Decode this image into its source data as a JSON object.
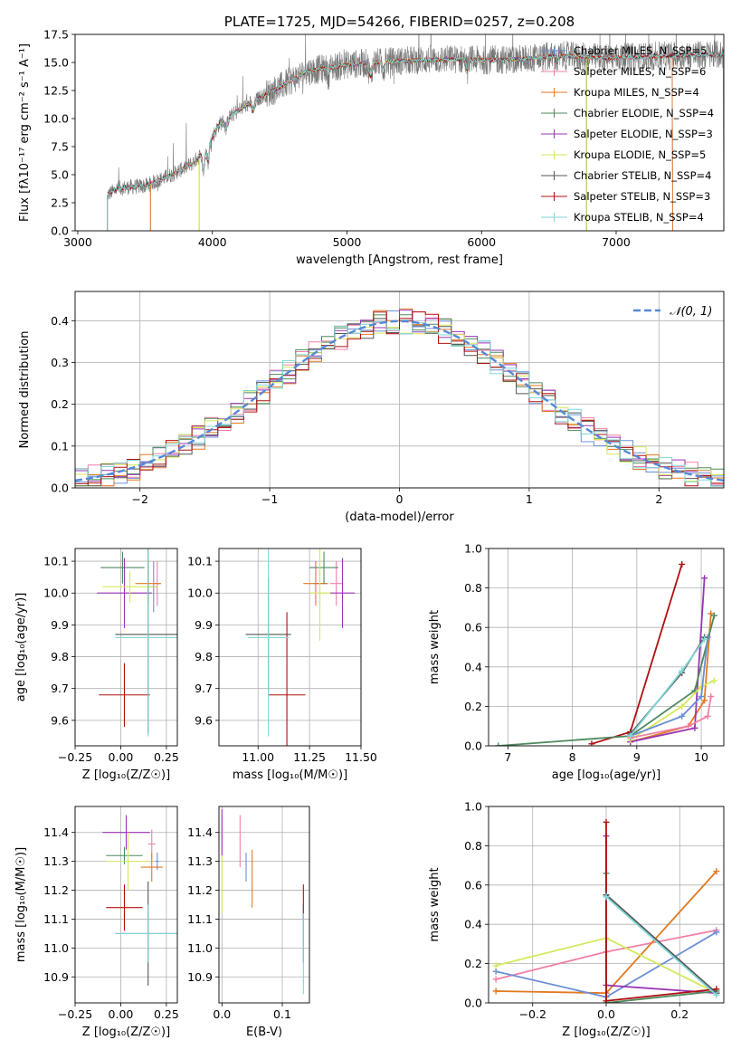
{
  "colors": {
    "chabrier_miles": "#6b8fd6",
    "salpeter_miles": "#f080a8",
    "kroupa_miles": "#e07a22",
    "chabrier_elodie": "#4e8a5e",
    "salpeter_elodie": "#9a35b5",
    "kroupa_elodie": "#d6e85a",
    "chabrier_stelib": "#555555",
    "salpeter_stelib": "#b01010",
    "kroupa_stelib": "#7fd6d6",
    "gaussian": "#5588d8",
    "grid": "#b0b0b0"
  },
  "chart_data": [
    {
      "id": "spectrum",
      "type": "line",
      "title": "PLATE=1725, MJD=54266, FIBERID=0257, z=0.208",
      "xlabel": "wavelength [Angstrom, rest frame]",
      "ylabel": "Flux [fλ10⁻¹⁷ erg cm⁻² s⁻¹ A⁻¹]",
      "xlim": [
        2980,
        7800
      ],
      "ylim": [
        0,
        17.5
      ],
      "xticks": [
        3000,
        4000,
        5000,
        6000,
        7000
      ],
      "yticks": [
        0.0,
        2.5,
        5.0,
        7.5,
        10.0,
        12.5,
        15.0,
        17.5
      ],
      "grid": false,
      "legend_position": "top-right",
      "continuum": {
        "x": [
          3220,
          3300,
          3500,
          3700,
          3850,
          3950,
          4050,
          4250,
          4500,
          4700,
          5000,
          5200,
          5500,
          5800,
          6000,
          6300,
          6600,
          6900,
          7200,
          7400,
          7800
        ],
        "y": [
          3.2,
          3.8,
          4.0,
          5.0,
          6.0,
          7.2,
          9.5,
          11.2,
          12.8,
          14.2,
          14.8,
          15.0,
          15.2,
          15.3,
          15.2,
          15.3,
          15.6,
          15.4,
          15.5,
          15.6,
          15.7
        ]
      },
      "series": [
        {
          "name": "Chabrier MILES, N_SSP=5",
          "color_key": "chabrier_miles"
        },
        {
          "name": "Salpeter MILES, N_SSP=6",
          "color_key": "salpeter_miles"
        },
        {
          "name": "Kroupa MILES, N_SSP=4",
          "color_key": "kroupa_miles"
        },
        {
          "name": "Chabrier ELODIE, N_SSP=4",
          "color_key": "chabrier_elodie"
        },
        {
          "name": "Salpeter ELODIE, N_SSP=3",
          "color_key": "salpeter_elodie"
        },
        {
          "name": "Kroupa ELODIE, N_SSP=5",
          "color_key": "kroupa_elodie"
        },
        {
          "name": "Chabrier STELIB, N_SSP=4",
          "color_key": "chabrier_stelib"
        },
        {
          "name": "Salpeter STELIB, N_SSP=3",
          "color_key": "salpeter_stelib"
        },
        {
          "name": "Kroupa STELIB, N_SSP=4",
          "color_key": "kroupa_stelib"
        }
      ]
    },
    {
      "id": "residuals",
      "type": "line",
      "xlabel": "(data-model)/error",
      "ylabel": "Normed distribution",
      "xlim": [
        -2.5,
        2.5
      ],
      "ylim": [
        0,
        0.47
      ],
      "xticks": [
        -2,
        -1,
        0,
        1,
        2
      ],
      "yticks": [
        0.0,
        0.1,
        0.2,
        0.3,
        0.4
      ],
      "grid": true,
      "legend_position": "top-right",
      "gaussian_label": "𝒩(0, 1)",
      "bin_width": 0.1
    },
    {
      "id": "age_vs_z",
      "type": "scatter",
      "xlabel": "Z [log₁₀(Z/Z☉)]",
      "ylabel": "age  [log₁₀(age/yr)]",
      "xlim": [
        -0.25,
        0.31
      ],
      "ylim": [
        9.52,
        10.14
      ],
      "xticks": [
        -0.25,
        0.0,
        0.25
      ],
      "yticks": [
        9.6,
        9.7,
        9.8,
        9.9,
        10.0,
        10.1
      ],
      "points": [
        {
          "c": "chabrier_miles",
          "x": 0.18,
          "xe": 0.02,
          "y": 10.02,
          "ye": 0.08
        },
        {
          "c": "salpeter_miles",
          "x": 0.2,
          "xe": 0.02,
          "y": 10.03,
          "ye": 0.07
        },
        {
          "c": "kroupa_miles",
          "x": 0.15,
          "xe": 0.07,
          "y": 10.03,
          "ye": 0.07
        },
        {
          "c": "chabrier_elodie",
          "x": 0.01,
          "xe": 0.12,
          "y": 10.08,
          "ye": 0.05
        },
        {
          "c": "salpeter_elodie",
          "x": 0.02,
          "xe": 0.15,
          "y": 10.0,
          "ye": 0.11
        },
        {
          "c": "kroupa_elodie",
          "x": 0.05,
          "xe": 0.15,
          "y": 10.02,
          "ye": 0.05
        },
        {
          "c": "chabrier_stelib",
          "x": 0.15,
          "xe": 0.18,
          "y": 9.87,
          "ye": 0.31
        },
        {
          "c": "salpeter_stelib",
          "x": 0.02,
          "xe": 0.14,
          "y": 9.68,
          "ye": 0.1
        },
        {
          "c": "kroupa_stelib",
          "x": 0.15,
          "xe": 0.18,
          "y": 9.86,
          "ye": 0.31
        }
      ]
    },
    {
      "id": "age_vs_mass",
      "type": "scatter",
      "xlabel": "mass [log₁₀(M/M☉)]",
      "ylabel": "",
      "xlim": [
        10.81,
        11.5
      ],
      "ylim": [
        9.52,
        10.14
      ],
      "xticks": [
        11.0,
        11.25,
        11.5
      ],
      "yticks": [
        9.6,
        9.7,
        9.8,
        9.9,
        10.0,
        10.1
      ],
      "points": [
        {
          "c": "chabrier_miles",
          "x": 11.3,
          "xe": 0.03,
          "y": 10.03,
          "ye": 0.07
        },
        {
          "c": "salpeter_miles",
          "x": 11.38,
          "xe": 0.03,
          "y": 10.03,
          "ye": 0.07
        },
        {
          "c": "kroupa_miles",
          "x": 11.28,
          "xe": 0.06,
          "y": 10.03,
          "ye": 0.07
        },
        {
          "c": "chabrier_elodie",
          "x": 11.32,
          "xe": 0.07,
          "y": 10.08,
          "ye": 0.05
        },
        {
          "c": "salpeter_elodie",
          "x": 11.41,
          "xe": 0.06,
          "y": 10.0,
          "ye": 0.11
        },
        {
          "c": "kroupa_elodie",
          "x": 11.3,
          "xe": 0.05,
          "y": 10.0,
          "ye": 0.15
        },
        {
          "c": "chabrier_stelib",
          "x": 11.05,
          "xe": 0.11,
          "y": 9.87,
          "ye": 0.18
        },
        {
          "c": "salpeter_stelib",
          "x": 11.14,
          "xe": 0.09,
          "y": 9.68,
          "ye": 0.26
        },
        {
          "c": "kroupa_stelib",
          "x": 11.05,
          "xe": 0.1,
          "y": 9.86,
          "ye": 0.31
        }
      ]
    },
    {
      "id": "mass_weight_vs_age",
      "type": "line",
      "xlabel": "age  [log₁₀(age/yr)]",
      "ylabel": "mass weight",
      "xlim": [
        6.7,
        10.35
      ],
      "ylim": [
        0,
        1.0
      ],
      "xticks": [
        7,
        8,
        9,
        10
      ],
      "yticks": [
        0.0,
        0.2,
        0.4,
        0.6,
        0.8,
        1.0
      ],
      "grid": true,
      "series": [
        {
          "c": "salpeter_stelib",
          "x": [
            8.3,
            8.9,
            9.7
          ],
          "y": [
            0.01,
            0.07,
            0.92
          ]
        },
        {
          "c": "kroupa_miles",
          "x": [
            8.9,
            9.8,
            10.05,
            10.15
          ],
          "y": [
            0.02,
            0.1,
            0.23,
            0.67
          ]
        },
        {
          "c": "salpeter_elodie",
          "x": [
            8.9,
            9.9,
            10.05
          ],
          "y": [
            0.02,
            0.09,
            0.85
          ]
        },
        {
          "c": "chabrier_elodie",
          "x": [
            6.85,
            8.9,
            9.9,
            10.2
          ],
          "y": [
            0.0,
            0.05,
            0.28,
            0.66
          ]
        },
        {
          "c": "kroupa_elodie",
          "x": [
            8.9,
            9.7,
            10.0,
            10.2
          ],
          "y": [
            0.03,
            0.2,
            0.3,
            0.33
          ]
        },
        {
          "c": "chabrier_miles",
          "x": [
            8.9,
            9.7,
            10.0,
            10.1
          ],
          "y": [
            0.05,
            0.15,
            0.25,
            0.55
          ]
        },
        {
          "c": "salpeter_miles",
          "x": [
            8.9,
            9.8,
            10.1,
            10.15
          ],
          "y": [
            0.04,
            0.1,
            0.15,
            0.25
          ]
        },
        {
          "c": "chabrier_stelib",
          "x": [
            8.9,
            9.7,
            10.05
          ],
          "y": [
            0.06,
            0.37,
            0.55
          ]
        },
        {
          "c": "kroupa_stelib",
          "x": [
            8.9,
            9.7,
            10.05
          ],
          "y": [
            0.05,
            0.38,
            0.54
          ]
        }
      ]
    },
    {
      "id": "mass_vs_z",
      "type": "scatter",
      "xlabel": "Z [log₁₀(Z/Z☉)]",
      "ylabel": "mass [log₁₀(M/M☉)]",
      "xlim": [
        -0.25,
        0.31
      ],
      "ylim": [
        10.81,
        11.49
      ],
      "xticks": [
        -0.25,
        0.0,
        0.25
      ],
      "yticks": [
        10.9,
        11.0,
        11.1,
        11.2,
        11.3,
        11.4
      ],
      "points": [
        {
          "c": "chabrier_miles",
          "x": 0.2,
          "xe": 0.01,
          "y": 11.3,
          "ye": 0.03
        },
        {
          "c": "salpeter_miles",
          "x": 0.17,
          "xe": 0.02,
          "y": 11.36,
          "ye": 0.05
        },
        {
          "c": "kroupa_miles",
          "x": 0.17,
          "xe": 0.06,
          "y": 11.28,
          "ye": 0.05
        },
        {
          "c": "chabrier_elodie",
          "x": 0.02,
          "xe": 0.1,
          "y": 11.32,
          "ye": 0.03
        },
        {
          "c": "salpeter_elodie",
          "x": 0.03,
          "xe": 0.13,
          "y": 11.4,
          "ye": 0.06
        },
        {
          "c": "kroupa_elodie",
          "x": 0.04,
          "xe": 0.12,
          "y": 11.3,
          "ye": 0.1
        },
        {
          "c": "chabrier_stelib",
          "x": 0.15,
          "xe": 0.18,
          "y": 11.05,
          "ye": 0.18
        },
        {
          "c": "salpeter_stelib",
          "x": 0.02,
          "xe": 0.1,
          "y": 11.14,
          "ye": 0.08
        },
        {
          "c": "kroupa_stelib",
          "x": 0.15,
          "xe": 0.18,
          "y": 11.05,
          "ye": 0.1
        }
      ]
    },
    {
      "id": "mass_vs_ebv",
      "type": "scatter",
      "xlabel": "E(B-V)",
      "ylabel": "",
      "xlim": [
        -0.005,
        0.145
      ],
      "ylim": [
        10.81,
        11.49
      ],
      "xticks": [
        0.0,
        0.1
      ],
      "yticks": [
        10.9,
        11.0,
        11.1,
        11.2,
        11.3,
        11.4
      ],
      "points": [
        {
          "c": "chabrier_miles",
          "x": 0.04,
          "y": 11.28,
          "ye": 0.05
        },
        {
          "c": "salpeter_miles",
          "x": 0.03,
          "y": 11.37,
          "ye": 0.09
        },
        {
          "c": "kroupa_miles",
          "x": 0.05,
          "y": 11.24,
          "ye": 0.1
        },
        {
          "c": "salpeter_elodie",
          "x": 0.0,
          "y": 11.4,
          "ye": 0.08
        },
        {
          "c": "kroupa_elodie",
          "x": 0.0,
          "y": 11.22,
          "ye": 0.1
        },
        {
          "c": "salpeter_stelib",
          "x": 0.135,
          "y": 11.16,
          "ye": 0.06
        },
        {
          "c": "chabrier_stelib",
          "x": 0.135,
          "y": 11.05,
          "ye": 0.1
        },
        {
          "c": "kroupa_stelib",
          "x": 0.135,
          "y": 10.98,
          "ye": 0.14
        }
      ]
    },
    {
      "id": "mass_weight_vs_z",
      "type": "line",
      "xlabel": "Z [log₁₀(Z/Z☉)]",
      "ylabel": "mass weight",
      "xlim": [
        -0.32,
        0.32
      ],
      "ylim": [
        0,
        1.0
      ],
      "xticks": [
        -0.2,
        0.0,
        0.2
      ],
      "yticks": [
        0.0,
        0.2,
        0.4,
        0.6,
        0.8,
        1.0
      ],
      "grid": true,
      "series": [
        {
          "c": "salpeter_miles",
          "x": [
            -0.3,
            0.0,
            0.3
          ],
          "y": [
            0.12,
            0.26,
            0.37
          ]
        },
        {
          "c": "kroupa_miles",
          "x": [
            -0.3,
            0.0,
            0.3
          ],
          "y": [
            0.06,
            0.05,
            0.67
          ]
        },
        {
          "c": "chabrier_miles",
          "x": [
            -0.3,
            0.0,
            0.3
          ],
          "y": [
            0.16,
            0.03,
            0.36
          ]
        },
        {
          "c": "kroupa_elodie",
          "x": [
            -0.3,
            0.0,
            0.3
          ],
          "y": [
            0.19,
            0.33,
            0.05
          ]
        },
        {
          "c": "salpeter_elodie",
          "x": [
            0.0,
            0.0,
            0.3
          ],
          "y": [
            0.85,
            0.09,
            0.05
          ]
        },
        {
          "c": "chabrier_elodie",
          "x": [
            0.0,
            0.0,
            0.3
          ],
          "y": [
            0.66,
            0.0,
            0.06
          ]
        },
        {
          "c": "salpeter_stelib",
          "x": [
            0.0,
            0.0,
            0.3
          ],
          "y": [
            0.92,
            0.01,
            0.07
          ]
        },
        {
          "c": "chabrier_stelib",
          "x": [
            0.0,
            0.0,
            0.3
          ],
          "y": [
            0.55,
            0.55,
            0.05
          ]
        },
        {
          "c": "kroupa_stelib",
          "x": [
            0.0,
            0.0,
            0.3
          ],
          "y": [
            0.54,
            0.54,
            0.04
          ]
        }
      ]
    }
  ]
}
